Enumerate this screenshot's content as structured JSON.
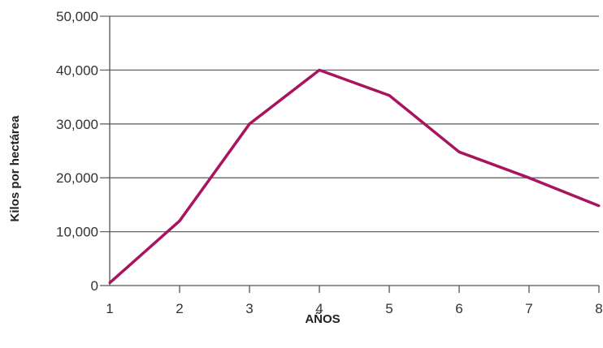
{
  "chart_data": {
    "type": "line",
    "title": "",
    "xlabel": "AÑOS",
    "ylabel": "Kilos por hectárea",
    "x": [
      1,
      2,
      3,
      4,
      5,
      6,
      7,
      8
    ],
    "xlim": [
      1,
      8
    ],
    "ylim": [
      0,
      50000
    ],
    "x_ticks": [
      "1",
      "2",
      "3",
      "4",
      "5",
      "6",
      "7",
      "8"
    ],
    "y_ticks": [
      {
        "value": 0,
        "label": "0"
      },
      {
        "value": 10000,
        "label": "10,000"
      },
      {
        "value": 20000,
        "label": "20,000"
      },
      {
        "value": 30000,
        "label": "30,000"
      },
      {
        "value": 40000,
        "label": "40,000"
      },
      {
        "value": 50000,
        "label": "50,000"
      }
    ],
    "grid": "horizontal",
    "legend": "none",
    "series": [
      {
        "values": [
          500,
          12000,
          30000,
          40000,
          35300,
          24800,
          20000,
          14800
        ],
        "color": "#a8145e"
      }
    ],
    "colors": {
      "grid": "#666666",
      "axis": "#555555"
    }
  }
}
